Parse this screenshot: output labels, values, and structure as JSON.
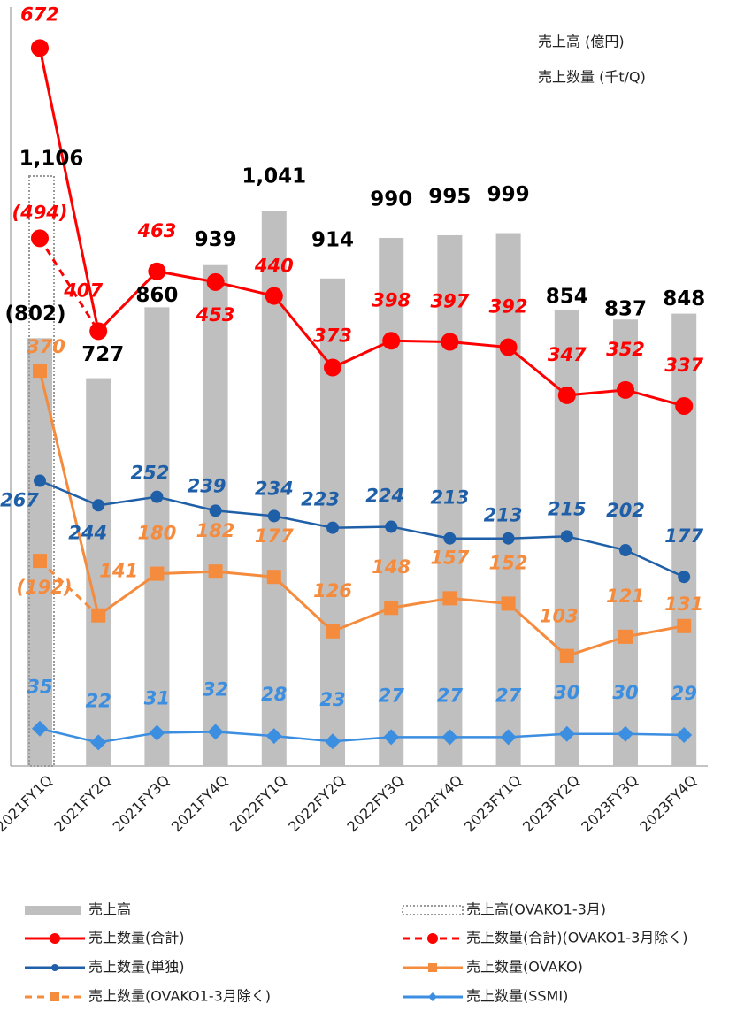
{
  "chart_data": {
    "type": "bar_line",
    "annotations": [
      "売上高 (億円)",
      "売上数量 (千t/Q)"
    ],
    "categories": [
      "2021FY1Q",
      "2021FY2Q",
      "2021FY3Q",
      "2021FY4Q",
      "2022FY1Q",
      "2022FY2Q",
      "2022FY3Q",
      "2022FY4Q",
      "2023FY1Q",
      "2023FY2Q",
      "2023FY3Q",
      "2023FY4Q"
    ],
    "ylim": [
      0,
      1436
    ],
    "y2lim": [
      0,
      717
    ],
    "series": [
      {
        "name": "売上高",
        "kind": "bar",
        "color": "#bfbfbf",
        "values": [
          802,
          727,
          860,
          939,
          1041,
          914,
          990,
          995,
          999,
          854,
          837,
          848
        ],
        "value_labels": [
          "(802)",
          "727",
          "860",
          "939",
          "1,041",
          "914",
          "990",
          "995",
          "999",
          "854",
          "837",
          "848"
        ]
      },
      {
        "name": "売上高(OVAKO1-3月)",
        "kind": "box",
        "color": "#999999",
        "values": [
          1106,
          null,
          null,
          null,
          null,
          null,
          null,
          null,
          null,
          null,
          null,
          null
        ],
        "value_labels": [
          "1,106",
          null,
          null,
          null,
          null,
          null,
          null,
          null,
          null,
          null,
          null,
          null
        ]
      },
      {
        "name": "売上数量(合計)",
        "kind": "line",
        "axis": "y2",
        "marker": "circle",
        "color": "#ff0000",
        "values": [
          672,
          407,
          463,
          453,
          440,
          373,
          398,
          397,
          392,
          347,
          352,
          337
        ]
      },
      {
        "name": "売上数量(合計)(OVAKO1-3月除く)",
        "kind": "line",
        "axis": "y2",
        "marker": "circle",
        "dashed": true,
        "color": "#ff0000",
        "values": [
          494,
          407,
          null,
          null,
          null,
          null,
          null,
          null,
          null,
          null,
          null,
          null
        ],
        "value_labels": [
          "(494)",
          null,
          null,
          null,
          null,
          null,
          null,
          null,
          null,
          null,
          null,
          null
        ]
      },
      {
        "name": "売上数量(単独)",
        "kind": "line",
        "axis": "y2",
        "marker": "dot",
        "color": "#1f5fa8",
        "values": [
          267,
          244,
          252,
          239,
          234,
          223,
          224,
          213,
          213,
          215,
          202,
          177
        ]
      },
      {
        "name": "売上数量(OVAKO)",
        "kind": "line",
        "axis": "y2",
        "marker": "square",
        "color": "#f58b3c",
        "values": [
          370,
          141,
          180,
          182,
          177,
          126,
          148,
          157,
          152,
          103,
          121,
          131
        ]
      },
      {
        "name": "売上数量(OVAKO1-3月除く)",
        "kind": "line",
        "axis": "y2",
        "marker": "square",
        "dashed": true,
        "color": "#f58b3c",
        "values": [
          192,
          141,
          null,
          null,
          null,
          null,
          null,
          null,
          null,
          null,
          null,
          null
        ],
        "value_labels": [
          "(192)",
          null,
          null,
          null,
          null,
          null,
          null,
          null,
          null,
          null,
          null,
          null
        ]
      },
      {
        "name": "売上数量(SSMI)",
        "kind": "line",
        "axis": "y2",
        "marker": "diamond",
        "color": "#3b8ee0",
        "values": [
          35,
          22,
          31,
          32,
          28,
          23,
          27,
          27,
          27,
          30,
          30,
          29
        ]
      }
    ]
  }
}
